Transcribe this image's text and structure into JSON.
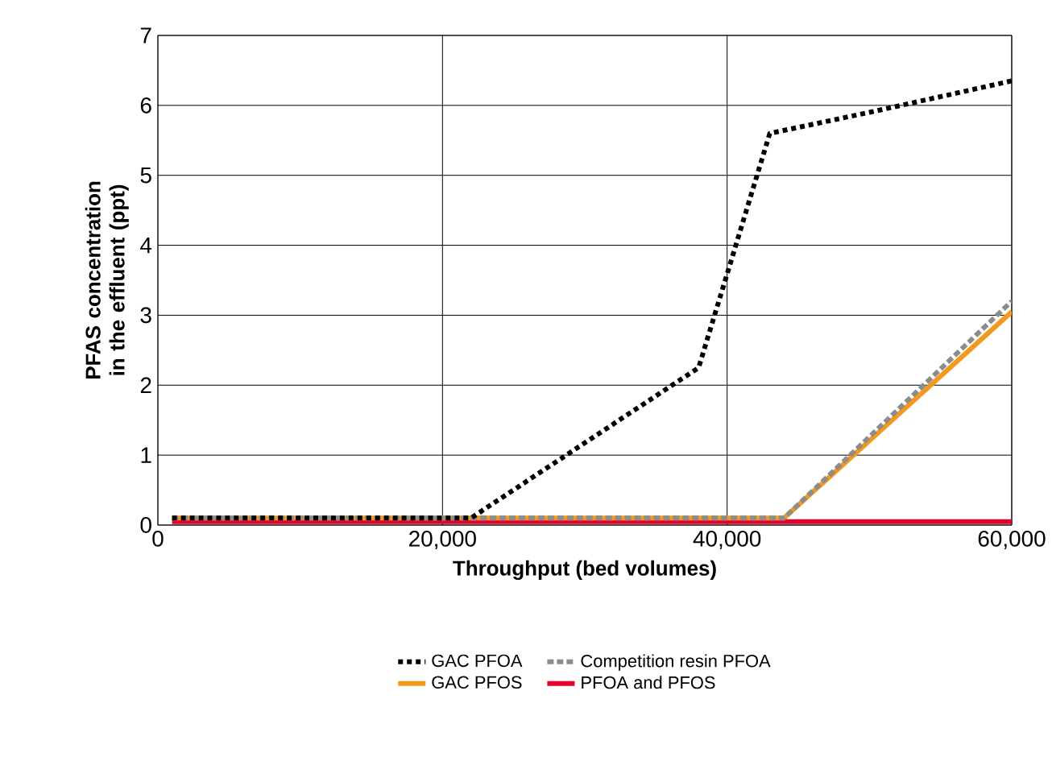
{
  "chart_data": {
    "type": "line",
    "xlabel": "Throughput (bed volumes)",
    "ylabel": "PFAS concentration in the effluent (ppt)",
    "xlim": [
      0,
      60000
    ],
    "ylim": [
      0,
      7
    ],
    "xticks": [
      0,
      {
        "value": 20000,
        "label": "20,000"
      },
      {
        "value": 40000,
        "label": "40,000"
      },
      {
        "value": 60000,
        "label": "60,000"
      }
    ],
    "yticks": [
      0,
      1,
      2,
      3,
      4,
      5,
      6,
      7
    ],
    "grid": true,
    "legend": "bottom",
    "marker": "none",
    "series": [
      {
        "name": "GAC PFOA",
        "color": "#000000",
        "line_style": "dotted",
        "x": [
          1000,
          22000,
          38000,
          43000,
          50000,
          60000
        ],
        "values": [
          0.1,
          0.1,
          2.25,
          5.6,
          5.9,
          6.35
        ]
      },
      {
        "name": "Competition resin PFOA",
        "color": "#8c8c8c",
        "line_style": "dashed",
        "x": [
          1000,
          44000,
          60000
        ],
        "values": [
          0.1,
          0.1,
          3.2
        ]
      },
      {
        "name": "GAC PFOS",
        "color": "#f39a1e",
        "line_style": "solid",
        "x": [
          1000,
          44000,
          60000
        ],
        "values": [
          0.1,
          0.1,
          3.05
        ]
      },
      {
        "name": "PFOA and PFOS",
        "color": "#e3002b",
        "line_style": "solid",
        "x": [
          1000,
          60000
        ],
        "values": [
          0.05,
          0.05
        ]
      }
    ]
  }
}
